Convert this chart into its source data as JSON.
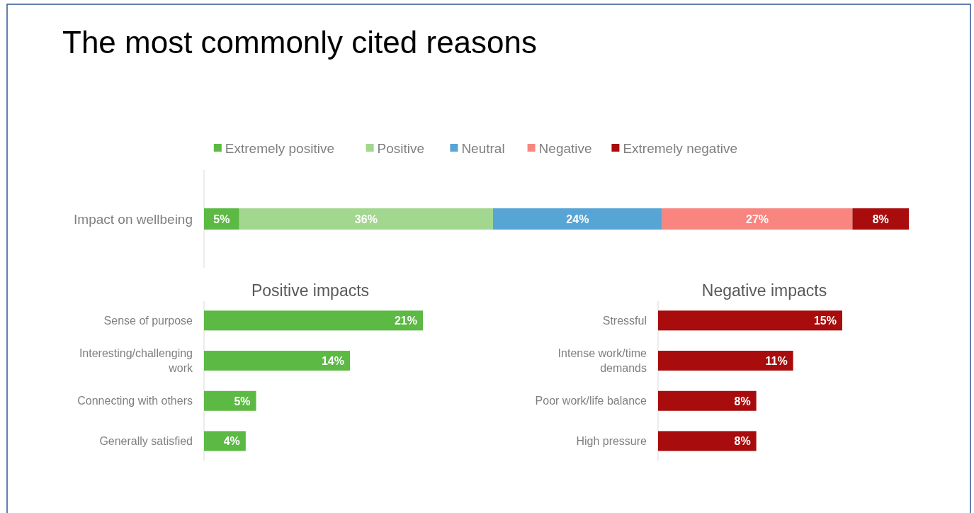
{
  "chart_data": [
    {
      "type": "bar",
      "title": "The most commonly cited reasons",
      "orientation": "horizontal",
      "stacked": true,
      "legend": "top",
      "tick_labels": "y",
      "categories": [
        "Impact on wellbeing"
      ],
      "series": [
        {
          "name": "Extremely positive",
          "color": "#5cb944",
          "values": [
            5
          ],
          "value_labels": [
            "5%"
          ]
        },
        {
          "name": "Positive",
          "color": "#a1d78f",
          "values": [
            36
          ],
          "value_labels": [
            "36%"
          ]
        },
        {
          "name": "Neutral",
          "color": "#56a5d5",
          "values": [
            24
          ],
          "value_labels": [
            "24%"
          ]
        },
        {
          "name": "Negative",
          "color": "#f8857f",
          "values": [
            27
          ],
          "value_labels": [
            "27%"
          ]
        },
        {
          "name": "Extremely negative",
          "color": "#a80c0c",
          "values": [
            8
          ],
          "value_labels": [
            "8%"
          ]
        }
      ]
    },
    {
      "type": "bar",
      "title": "Positive impacts",
      "orientation": "horizontal",
      "tick_labels": "y",
      "categories": [
        "Sense of purpose",
        "Interesting/challenging work",
        "Connecting with others",
        "Generally satisfied"
      ],
      "series": [
        {
          "color": "#5cb944",
          "values": [
            21,
            14,
            5,
            4
          ],
          "value_labels": [
            "21%",
            "14%",
            "5%",
            "4%"
          ]
        }
      ]
    },
    {
      "type": "bar",
      "title": "Negative impacts",
      "orientation": "horizontal",
      "tick_labels": "y",
      "categories": [
        "Stressful",
        "Intense work/time demands",
        "Poor work/life balance",
        "High pressure"
      ],
      "series": [
        {
          "color": "#a80c0c",
          "values": [
            15,
            11,
            8,
            8
          ],
          "value_labels": [
            "15%",
            "11%",
            "8%",
            "8%"
          ]
        }
      ]
    }
  ]
}
